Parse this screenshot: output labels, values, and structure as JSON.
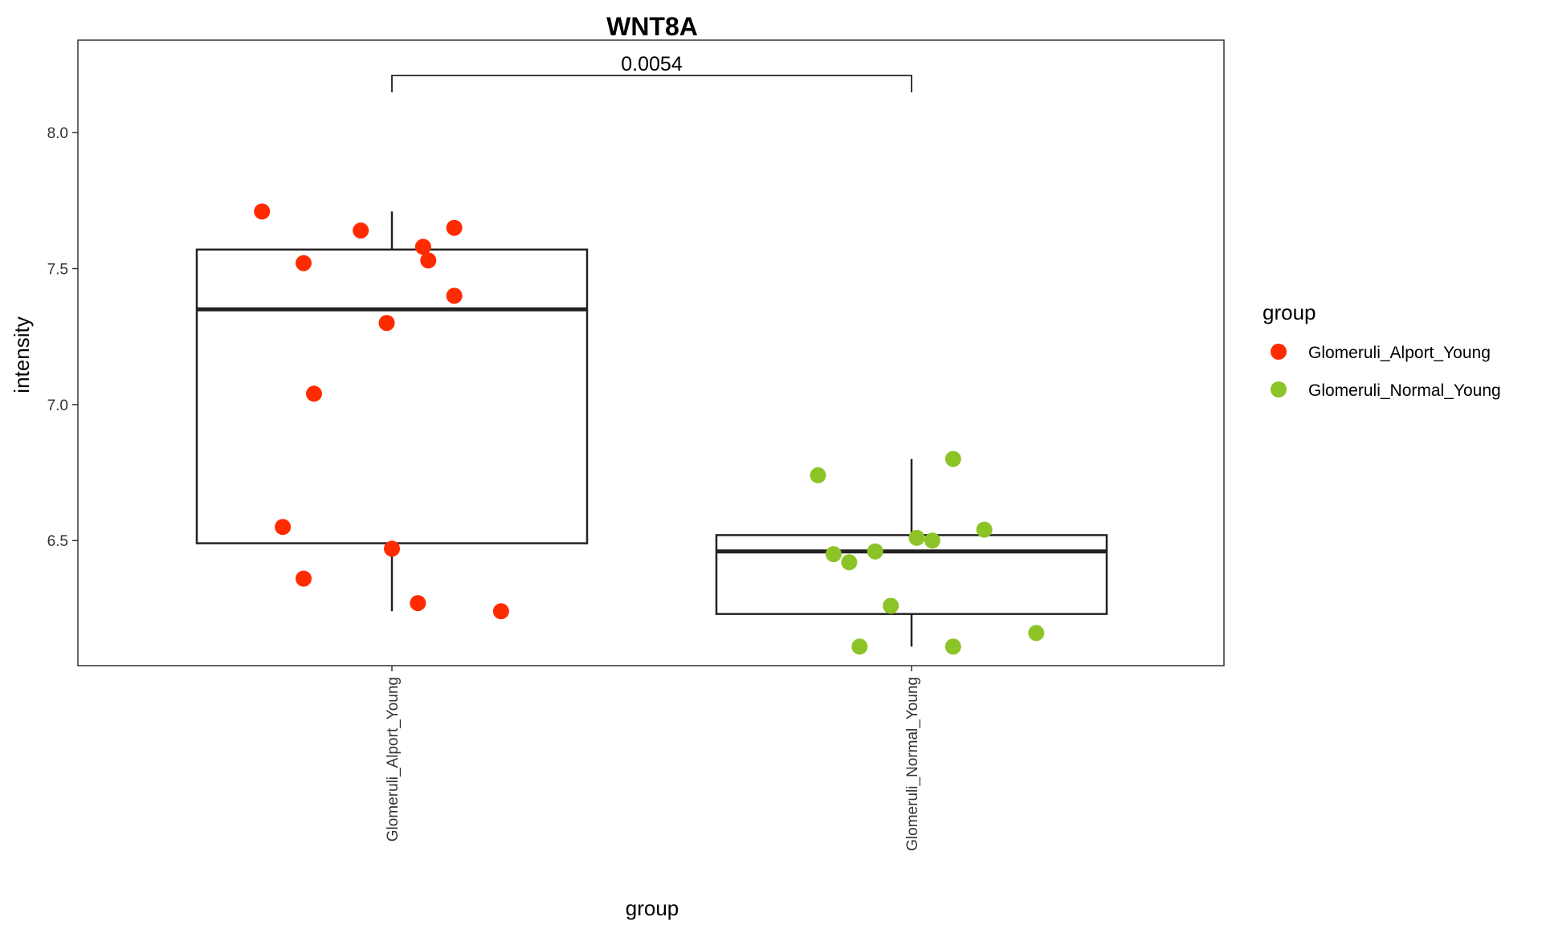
{
  "chart_data": {
    "type": "box",
    "title": "WNT8A",
    "xlabel": "group",
    "ylabel": "intensity",
    "ylim": [
      6.04,
      8.34
    ],
    "yticks": [
      6.5,
      7.0,
      7.5,
      8.0
    ],
    "ytick_labels": [
      "6.5",
      "7.0",
      "7.5",
      "8.0"
    ],
    "grid": false,
    "categories": [
      "Glomeruli_Alport_Young",
      "Glomeruli_Normal_Young"
    ],
    "legend": {
      "title": "group",
      "position": "right",
      "entries": [
        {
          "label": "Glomeruli_Alport_Young",
          "color": "#FF2B00"
        },
        {
          "label": "Glomeruli_Normal_Young",
          "color": "#8CC428"
        }
      ]
    },
    "boxes": [
      {
        "category": "Glomeruli_Alport_Young",
        "whisker_low": 6.24,
        "q1": 6.49,
        "median": 7.35,
        "q3": 7.57,
        "whisker_high": 7.71
      },
      {
        "category": "Glomeruli_Normal_Young",
        "whisker_low": 6.11,
        "q1": 6.23,
        "median": 6.46,
        "q3": 6.52,
        "whisker_high": 6.8
      }
    ],
    "points": [
      {
        "group": 0,
        "jitter": -0.25,
        "y": 7.71
      },
      {
        "group": 0,
        "jitter": 0.06,
        "y": 7.58
      },
      {
        "group": 0,
        "jitter": -0.06,
        "y": 7.64
      },
      {
        "group": 0,
        "jitter": 0.12,
        "y": 7.65
      },
      {
        "group": 0,
        "jitter": -0.17,
        "y": 7.52
      },
      {
        "group": 0,
        "jitter": 0.07,
        "y": 7.53
      },
      {
        "group": 0,
        "jitter": 0.12,
        "y": 7.4
      },
      {
        "group": 0,
        "jitter": -0.01,
        "y": 7.3
      },
      {
        "group": 0,
        "jitter": -0.15,
        "y": 7.04
      },
      {
        "group": 0,
        "jitter": -0.21,
        "y": 6.55
      },
      {
        "group": 0,
        "jitter": 0.0,
        "y": 6.47
      },
      {
        "group": 0,
        "jitter": -0.17,
        "y": 6.36
      },
      {
        "group": 0,
        "jitter": 0.05,
        "y": 6.27
      },
      {
        "group": 0,
        "jitter": 0.21,
        "y": 6.24
      },
      {
        "group": 1,
        "jitter": 0.08,
        "y": 6.8
      },
      {
        "group": 1,
        "jitter": -0.18,
        "y": 6.74
      },
      {
        "group": 1,
        "jitter": 0.14,
        "y": 6.54
      },
      {
        "group": 1,
        "jitter": 0.01,
        "y": 6.51
      },
      {
        "group": 1,
        "jitter": 0.04,
        "y": 6.5
      },
      {
        "group": 1,
        "jitter": -0.07,
        "y": 6.46
      },
      {
        "group": 1,
        "jitter": -0.15,
        "y": 6.45
      },
      {
        "group": 1,
        "jitter": -0.12,
        "y": 6.42
      },
      {
        "group": 1,
        "jitter": -0.04,
        "y": 6.26
      },
      {
        "group": 1,
        "jitter": 0.24,
        "y": 6.16
      },
      {
        "group": 1,
        "jitter": -0.1,
        "y": 6.11
      },
      {
        "group": 1,
        "jitter": 0.08,
        "y": 6.11
      }
    ],
    "comparisons": [
      {
        "from": 0,
        "to": 1,
        "y": 8.21,
        "label": "0.0054"
      }
    ]
  }
}
